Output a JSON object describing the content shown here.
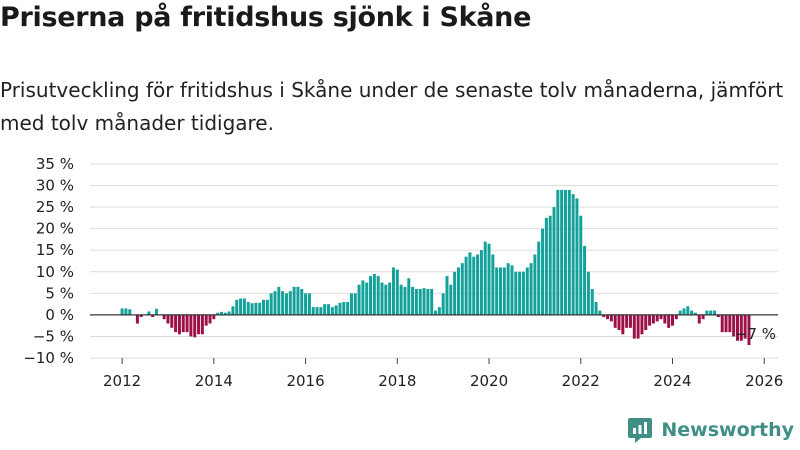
{
  "title": "Priserna på fritidshus sjönk i Skåne",
  "subtitle": "Prisutveckling för fritidshus i Skåne under de senaste tolv månaderna, jämfört med tolv månader tidigare.",
  "brand": {
    "name": "Newsworthy",
    "icon": "newsworthy-logo-icon",
    "color": "#3f8f87"
  },
  "chart_data": {
    "type": "bar",
    "title": "Priserna på fritidshus sjönk i Skåne",
    "xlabel": "",
    "ylabel": "",
    "unit": "%",
    "ylim": [
      -10,
      35
    ],
    "yticks": [
      -10,
      -5,
      0,
      5,
      10,
      15,
      20,
      25,
      30,
      35
    ],
    "ytick_labels": [
      "−10 %",
      "−5 %",
      "0 %",
      "5 %",
      "10 %",
      "15 %",
      "20 %",
      "25 %",
      "30 %",
      "35 %"
    ],
    "xlim": [
      2011.3,
      2026.3
    ],
    "xticks": [
      "2012",
      "2014",
      "2016",
      "2018",
      "2020",
      "2022",
      "2024",
      "2026"
    ],
    "grid": true,
    "colors": {
      "positive": "#13a19a",
      "negative": "#9c1047"
    },
    "annotation": {
      "text": "−7 %",
      "x": 2025.94,
      "y": -7
    },
    "start": "2012-01",
    "frequency": "monthly",
    "values": [
      1.5,
      1.5,
      1.3,
      0,
      -2,
      -0.5,
      0,
      0.8,
      -0.5,
      1.4,
      0,
      -1,
      -2,
      -3,
      -4,
      -4.5,
      -4,
      -4,
      -5,
      -5.2,
      -4.5,
      -4.5,
      -2.5,
      -2,
      -1,
      0.5,
      0.7,
      0.5,
      0.8,
      2,
      3.5,
      3.8,
      3.8,
      3,
      2.7,
      2.8,
      2.8,
      3.5,
      3.5,
      5,
      5.5,
      6.5,
      5.5,
      5,
      5.5,
      6.5,
      6.5,
      6,
      5,
      5,
      1.8,
      1.8,
      1.8,
      2.5,
      2.5,
      1.8,
      2.2,
      2.8,
      3,
      3,
      5,
      5,
      7,
      8,
      7.5,
      9,
      9.5,
      9,
      7.5,
      7,
      7.5,
      11,
      10.5,
      7,
      6.5,
      8.5,
      6.5,
      6,
      6,
      6.2,
      6,
      6,
      1,
      1.8,
      5,
      9,
      7,
      10,
      11,
      12,
      13.5,
      14.5,
      13.5,
      14,
      15,
      17,
      16.5,
      14,
      11,
      11,
      11,
      12,
      11.5,
      10,
      10,
      10,
      11,
      12,
      14,
      17,
      20,
      22.5,
      23,
      25,
      29,
      29,
      29,
      29,
      28,
      27,
      23,
      16,
      10,
      6,
      3,
      1,
      -0.5,
      -1,
      -1.5,
      -3,
      -3.5,
      -4.5,
      -3,
      -3,
      -5.5,
      -5.5,
      -4.5,
      -3.5,
      -2.5,
      -2,
      -1.5,
      -1,
      -2,
      -3,
      -2.5,
      -1,
      1,
      1.5,
      2,
      1,
      0.5,
      -2,
      -1,
      1,
      1,
      1,
      -0.5,
      -4,
      -4,
      -4,
      -5,
      -6,
      -6,
      -5.5,
      -7
    ]
  }
}
